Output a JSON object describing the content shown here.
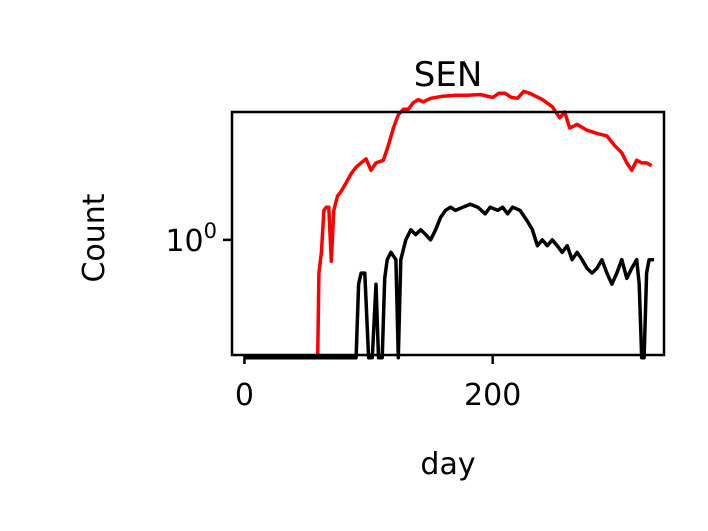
{
  "chart_data": {
    "type": "line",
    "title": "SEN",
    "xlabel": "day",
    "ylabel": "Count",
    "xlim": [
      -10,
      338
    ],
    "ylim_log10": [
      -0.9,
      1.0
    ],
    "yscale": "log",
    "x_ticks": [
      {
        "value": 0,
        "label": "0"
      },
      {
        "value": 200,
        "label": "200"
      }
    ],
    "y_ticks": [
      {
        "value": 1,
        "base": "10",
        "exp": "0"
      }
    ],
    "grid": false,
    "legend": "none",
    "series": [
      {
        "color": "#ff0000",
        "points": [
          [
            0,
            0.12
          ],
          [
            20,
            0.12
          ],
          [
            40,
            0.12
          ],
          [
            59,
            0.12
          ],
          [
            60,
            0.55
          ],
          [
            62,
            0.8
          ],
          [
            64,
            1.7
          ],
          [
            66,
            1.8
          ],
          [
            68,
            1.8
          ],
          [
            70,
            0.68
          ],
          [
            72,
            1.7
          ],
          [
            75,
            2.2
          ],
          [
            78,
            2.4
          ],
          [
            82,
            2.8
          ],
          [
            86,
            3.3
          ],
          [
            90,
            3.7
          ],
          [
            94,
            4.0
          ],
          [
            98,
            4.3
          ],
          [
            102,
            3.5
          ],
          [
            106,
            4.0
          ],
          [
            112,
            4.2
          ],
          [
            116,
            5.5
          ],
          [
            120,
            7.5
          ],
          [
            124,
            9.5
          ],
          [
            128,
            10.5
          ],
          [
            132,
            10.5
          ],
          [
            136,
            11.8
          ],
          [
            140,
            12.5
          ],
          [
            144,
            12.0
          ],
          [
            150,
            12.8
          ],
          [
            160,
            13.3
          ],
          [
            170,
            13.5
          ],
          [
            180,
            13.5
          ],
          [
            190,
            13.7
          ],
          [
            200,
            13.0
          ],
          [
            205,
            14.0
          ],
          [
            210,
            14.0
          ],
          [
            215,
            13.0
          ],
          [
            220,
            12.8
          ],
          [
            225,
            14.5
          ],
          [
            230,
            14.0
          ],
          [
            240,
            12.5
          ],
          [
            248,
            11.0
          ],
          [
            254,
            9.0
          ],
          [
            258,
            10.0
          ],
          [
            262,
            7.5
          ],
          [
            268,
            8.0
          ],
          [
            276,
            7.2
          ],
          [
            284,
            6.8
          ],
          [
            292,
            6.5
          ],
          [
            298,
            5.5
          ],
          [
            304,
            4.8
          ],
          [
            308,
            4.0
          ],
          [
            312,
            3.5
          ],
          [
            316,
            4.2
          ],
          [
            320,
            4.0
          ],
          [
            324,
            4.0
          ],
          [
            328,
            3.8
          ]
        ]
      },
      {
        "color": "#000000",
        "points": [
          [
            0,
            0.12
          ],
          [
            40,
            0.12
          ],
          [
            80,
            0.12
          ],
          [
            90,
            0.12
          ],
          [
            92,
            0.45
          ],
          [
            94,
            0.55
          ],
          [
            97,
            0.55
          ],
          [
            100,
            0.12
          ],
          [
            103,
            0.12
          ],
          [
            106,
            0.45
          ],
          [
            108,
            0.12
          ],
          [
            111,
            0.12
          ],
          [
            113,
            0.5
          ],
          [
            115,
            0.7
          ],
          [
            118,
            0.8
          ],
          [
            122,
            0.7
          ],
          [
            124,
            0.12
          ],
          [
            126,
            0.7
          ],
          [
            130,
            1.0
          ],
          [
            134,
            1.2
          ],
          [
            138,
            1.1
          ],
          [
            142,
            1.2
          ],
          [
            146,
            1.1
          ],
          [
            150,
            1.0
          ],
          [
            154,
            1.2
          ],
          [
            158,
            1.5
          ],
          [
            162,
            1.7
          ],
          [
            166,
            1.8
          ],
          [
            170,
            1.7
          ],
          [
            176,
            1.8
          ],
          [
            182,
            1.9
          ],
          [
            188,
            1.8
          ],
          [
            194,
            1.6
          ],
          [
            198,
            1.8
          ],
          [
            204,
            1.7
          ],
          [
            208,
            1.8
          ],
          [
            212,
            1.6
          ],
          [
            216,
            1.8
          ],
          [
            222,
            1.7
          ],
          [
            228,
            1.4
          ],
          [
            232,
            1.2
          ],
          [
            236,
            0.9
          ],
          [
            240,
            1.0
          ],
          [
            244,
            0.9
          ],
          [
            248,
            1.0
          ],
          [
            252,
            0.9
          ],
          [
            256,
            0.8
          ],
          [
            260,
            0.9
          ],
          [
            264,
            0.7
          ],
          [
            268,
            0.8
          ],
          [
            272,
            0.7
          ],
          [
            276,
            0.6
          ],
          [
            280,
            0.55
          ],
          [
            284,
            0.6
          ],
          [
            288,
            0.7
          ],
          [
            292,
            0.55
          ],
          [
            296,
            0.45
          ],
          [
            300,
            0.55
          ],
          [
            304,
            0.7
          ],
          [
            308,
            0.5
          ],
          [
            312,
            0.6
          ],
          [
            316,
            0.7
          ],
          [
            318,
            0.45
          ],
          [
            320,
            0.12
          ],
          [
            322,
            0.12
          ],
          [
            324,
            0.55
          ],
          [
            326,
            0.7
          ],
          [
            330,
            0.7
          ]
        ]
      }
    ]
  }
}
